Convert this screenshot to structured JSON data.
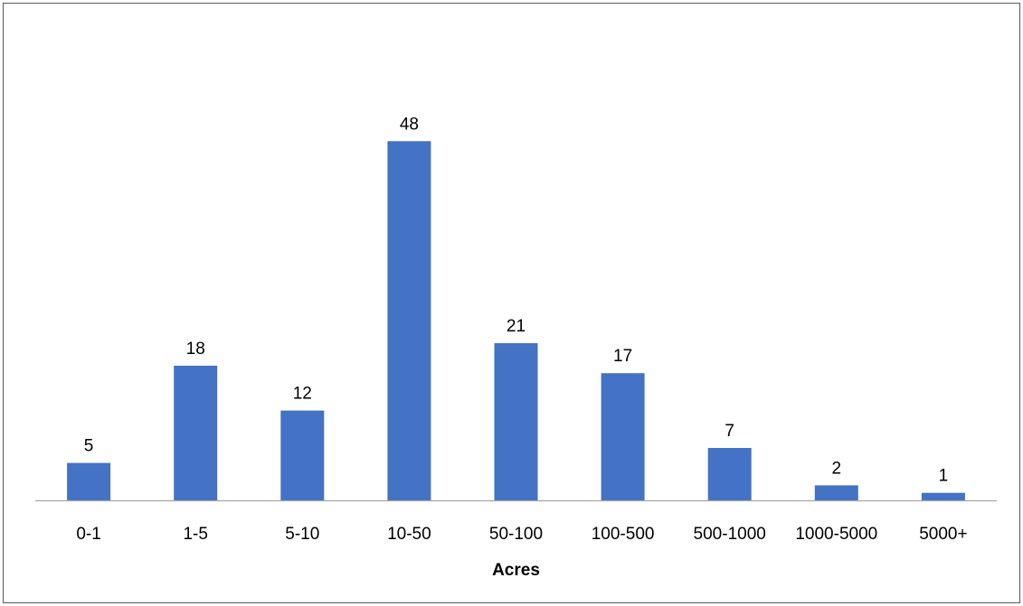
{
  "chart_data": {
    "type": "bar",
    "categories": [
      "0-1",
      "1-5",
      "5-10",
      "10-50",
      "50-100",
      "100-500",
      "500-1000",
      "1000-5000",
      "5000+"
    ],
    "values": [
      5,
      18,
      12,
      48,
      21,
      17,
      7,
      2,
      1
    ],
    "data_labels": [
      "5",
      "18",
      "12",
      "48",
      "21",
      "17",
      "7",
      "2",
      "1"
    ],
    "title": "",
    "xlabel": "Acres",
    "ylabel": "",
    "ylim": [
      0,
      50
    ],
    "grid": false,
    "legend": "none",
    "colors": {
      "bar": "#4472C4",
      "axis": "#A6A6A6",
      "border": "#595959"
    }
  }
}
